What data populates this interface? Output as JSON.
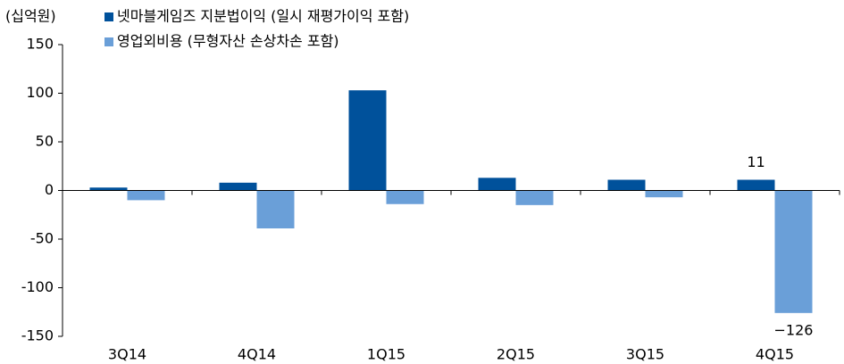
{
  "chart_data": {
    "type": "bar",
    "y_label": "(십억원)",
    "categories": [
      "3Q14",
      "4Q14",
      "1Q15",
      "2Q15",
      "3Q15",
      "4Q15"
    ],
    "series": [
      {
        "name": "넷마블게임즈 지분법이익 (일시 재평가이익 포함)",
        "color": "#00519b",
        "values": [
          3,
          8,
          103,
          13,
          11,
          11
        ],
        "value_labels": [
          null,
          null,
          null,
          null,
          null,
          "11"
        ]
      },
      {
        "name": "영업외비용 (무형자산 손상차손 포함)",
        "color": "#6a9fd8",
        "values": [
          -10,
          -39,
          -14,
          -15,
          -7,
          -126
        ],
        "value_labels": [
          null,
          null,
          null,
          null,
          null,
          "−126"
        ]
      }
    ],
    "ylim": [
      -150,
      150
    ],
    "yticks": [
      -150,
      -100,
      -50,
      0,
      50,
      100,
      150
    ]
  }
}
